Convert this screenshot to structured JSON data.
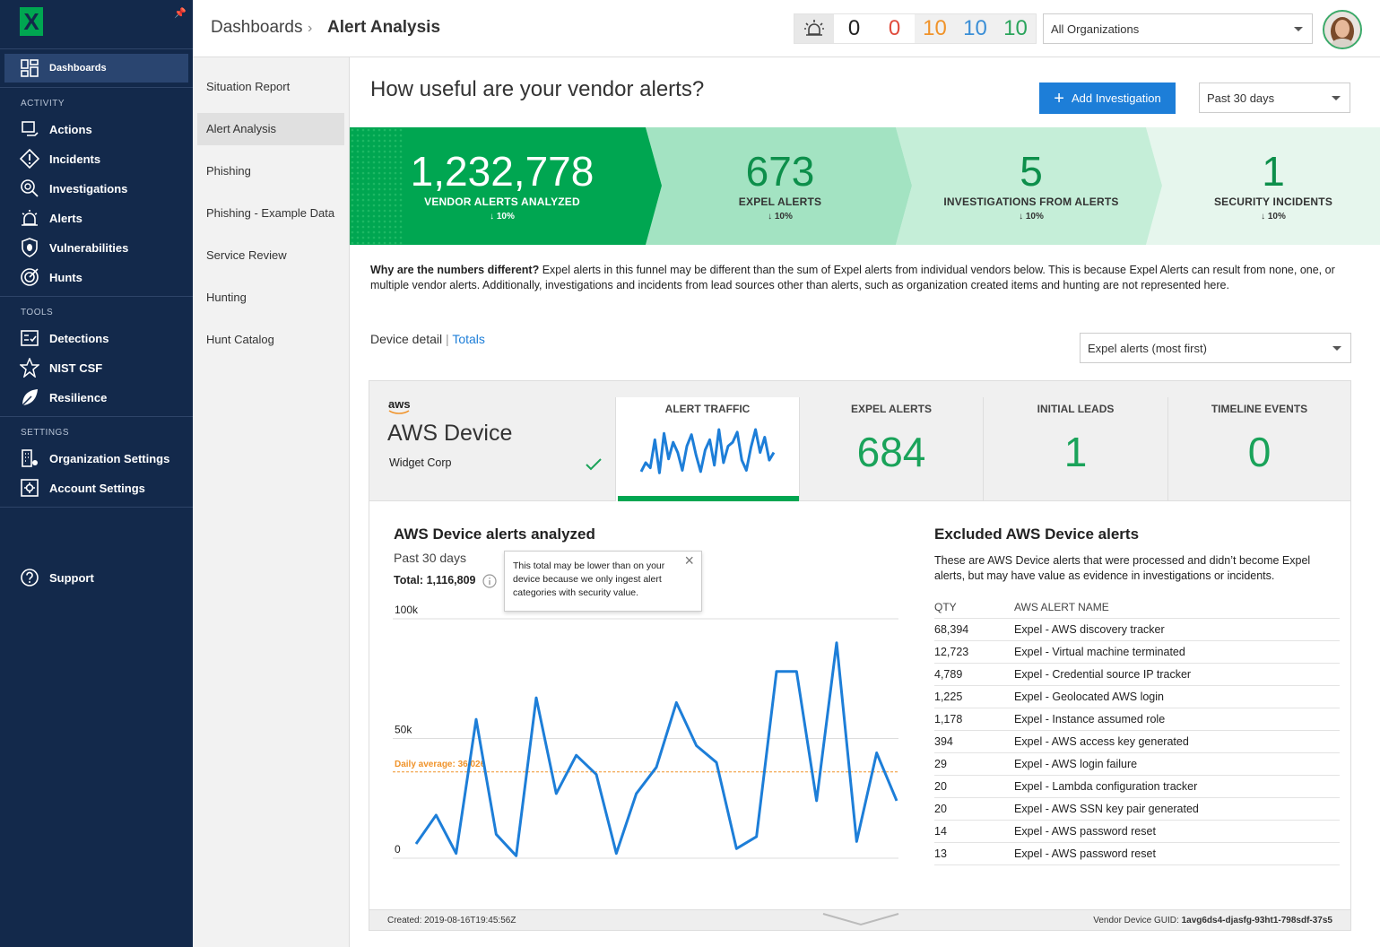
{
  "sidebar": {
    "logo": "X",
    "items": [
      {
        "label": "Dashboards",
        "icon": "dashboard-icon"
      },
      {
        "label": "Actions",
        "icon": "actions-icon"
      },
      {
        "label": "Incidents",
        "icon": "incident-icon"
      },
      {
        "label": "Investigations",
        "icon": "investigation-icon"
      },
      {
        "label": "Alerts",
        "icon": "alarm-icon"
      },
      {
        "label": "Vulnerabilities",
        "icon": "shield-bug-icon"
      },
      {
        "label": "Hunts",
        "icon": "target-icon"
      },
      {
        "label": "Detections",
        "icon": "detections-icon"
      },
      {
        "label": "NIST CSF",
        "icon": "nist-icon"
      },
      {
        "label": "Resilience",
        "icon": "leaf-icon"
      },
      {
        "label": "Organization Settings",
        "icon": "org-settings-icon"
      },
      {
        "label": "Account Settings",
        "icon": "account-settings-icon"
      },
      {
        "label": "Support",
        "icon": "help-icon"
      }
    ],
    "sections": {
      "activity": "ACTIVITY",
      "tools": "TOOLS",
      "settings": "SETTINGS"
    }
  },
  "subnav": [
    "Situation Report",
    "Alert Analysis",
    "Phishing",
    "Phishing - Example Data",
    "Service Review",
    "Hunting",
    "Hunt Catalog"
  ],
  "header": {
    "breadcrumb_root": "Dashboards",
    "breadcrumb_current": "Alert Analysis",
    "counts": [
      "0",
      "0",
      "10",
      "10",
      "10"
    ],
    "count_colors": [
      "#222222",
      "#e04b3c",
      "#f0932a",
      "#3a8ed6",
      "#2aa45b"
    ],
    "org_select": "All Organizations"
  },
  "main": {
    "title": "How useful are your vendor alerts?",
    "add_button": "Add Investigation",
    "range_select": "Past 30 days"
  },
  "funnel": [
    {
      "num": "1,232,778",
      "label": "VENDOR ALERTS ANALYZED",
      "pct": "10%"
    },
    {
      "num": "673",
      "label": "EXPEL ALERTS",
      "pct": "10%"
    },
    {
      "num": "5",
      "label": "INVESTIGATIONS FROM ALERTS",
      "pct": "10%"
    },
    {
      "num": "1",
      "label": "SECURITY INCIDENTS",
      "pct": "10%"
    }
  ],
  "why": {
    "bold": "Why are the numbers different?",
    "text": " Expel alerts in this funnel may be different than the sum of Expel alerts from individual vendors below. This is because Expel Alerts can result from none, one, or multiple vendor alerts. Additionally, investigations and incidents from lead sources other than alerts, such as organization created items and hunting are not represented here."
  },
  "tabs": {
    "device_detail": "Device detail",
    "sep": "|",
    "totals": "Totals",
    "sort_select": "Expel alerts (most first)"
  },
  "device": {
    "vendor": "aws",
    "name": "AWS Device",
    "org": "Widget Corp",
    "metrics": [
      {
        "label": "ALERT TRAFFIC"
      },
      {
        "label": "EXPEL ALERTS",
        "value": "684"
      },
      {
        "label": "INITIAL LEADS",
        "value": "1"
      },
      {
        "label": "TIMELINE EVENTS",
        "value": "0"
      }
    ]
  },
  "analyzed": {
    "title": "AWS Device alerts analyzed",
    "range": "Past 30 days",
    "total": "Total: 1,116,809",
    "tooltip": "This total may be lower than on your device because we only ingest alert categories with security value.",
    "avg_label": "Daily average: 36,026"
  },
  "excluded": {
    "title": "Excluded AWS Device alerts",
    "desc": "These are AWS Device alerts that were processed and didn’t become Expel alerts, but may have value as evidence in investigations or incidents.",
    "col_qty": "QTY",
    "col_name": "AWS ALERT NAME",
    "rows": [
      {
        "qty": "68,394",
        "name": "Expel - AWS discovery tracker"
      },
      {
        "qty": "12,723",
        "name": "Expel - Virtual machine terminated"
      },
      {
        "qty": "4,789",
        "name": "Expel - Credential source IP tracker"
      },
      {
        "qty": "1,225",
        "name": "Expel - Geolocated AWS login"
      },
      {
        "qty": "1,178",
        "name": "Expel - Instance assumed role"
      },
      {
        "qty": "394",
        "name": "Expel - AWS access key generated"
      },
      {
        "qty": "29",
        "name": "Expel - AWS login failure"
      },
      {
        "qty": "20",
        "name": "Expel - Lambda configuration tracker"
      },
      {
        "qty": "20",
        "name": "Expel - AWS SSN key pair generated"
      },
      {
        "qty": "14",
        "name": "Expel - AWS password reset"
      },
      {
        "qty": "13",
        "name": "Expel - AWS password reset"
      }
    ]
  },
  "footer": {
    "created": "Created: 2019-08-16T19:45:56Z",
    "guid_label": "Vendor Device GUID: ",
    "guid": "1avg6ds4-djasfg-93ht1-798sdf-37s5"
  },
  "chart_data": {
    "type": "line",
    "title": "AWS Device alerts analyzed",
    "y_ticks": [
      "100k",
      "50k",
      "0"
    ],
    "ylim": [
      0,
      100000
    ],
    "values": [
      6000,
      18000,
      2000,
      58000,
      10000,
      1000,
      67000,
      27000,
      43000,
      35000,
      2000,
      27000,
      38000,
      65000,
      47000,
      40000,
      4000,
      9000,
      78000,
      78000,
      24000,
      90000,
      7000,
      44000,
      24000
    ],
    "daily_average": 36026,
    "series_color": "#1d7ed8",
    "avg_color": "#f0932a"
  },
  "sparkline": [
    5,
    12,
    8,
    30,
    4,
    35,
    15,
    28,
    20,
    6,
    25,
    34,
    18,
    5,
    22,
    30,
    10,
    38,
    12,
    25,
    28,
    36,
    14,
    6,
    24,
    38,
    20,
    32,
    14,
    20
  ]
}
